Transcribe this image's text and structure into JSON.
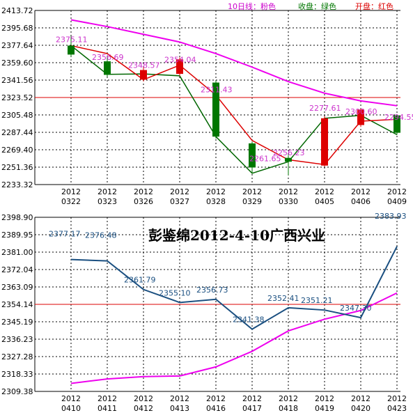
{
  "title": "彭鉴绵2012-4-10广西兴业",
  "legend": [
    {
      "label": "10日线：粉色",
      "color": "#cc00cc"
    },
    {
      "label": "收盘：绿色",
      "color": "#007700"
    },
    {
      "label": "开盘：红色",
      "color": "#dd0000"
    }
  ],
  "colors": {
    "up": "#dd0000",
    "down": "#007700",
    "ma": "#ee00ee",
    "close_line": "#006600",
    "open_line": "#dd0000",
    "annotation": "#cc33cc",
    "bottom_line": "#1a4f80",
    "bottom_annotation": "#1a4f80",
    "ref_line": "#dd0000"
  },
  "chart_data": [
    {
      "type": "candlestick",
      "x": [
        "2012\n0322",
        "2012\n0323",
        "2012\n0326",
        "2012\n0327",
        "2012\n0328",
        "2012\n0329",
        "2012\n0330",
        "2012\n0405",
        "2012\n0406",
        "2012\n0409"
      ],
      "yticks": [
        "2413.72",
        "2395.68",
        "2377.64",
        "2359.60",
        "2341.56",
        "2323.52",
        "2305.48",
        "2287.44",
        "2269.40",
        "2251.36",
        "2233.32"
      ],
      "ylim": [
        2233.32,
        2413.72
      ],
      "grid": true,
      "reference_line": 2323.52,
      "series": [
        {
          "name": "收盘",
          "values": [
            2375.11,
            2356.69,
            2348.57,
            2354.04,
            2311.43,
            2261.65,
            2256.23,
            2277.61,
            2300.6,
            2294.55
          ]
        },
        {
          "name": "开盘",
          "values": [
            2377.3,
            2369.0,
            2342.0,
            2357.0,
            2326.0,
            2279.0,
            2259.0,
            2254.0,
            2299.0,
            2301.0
          ]
        },
        {
          "name": "收盘线",
          "values": [
            2377.3,
            2347.5,
            2348.0,
            2346.0,
            2283.0,
            2245.0,
            2257.0,
            2302.0,
            2305.0,
            2285.0
          ]
        },
        {
          "name": "10日线",
          "values": [
            2404.0,
            2397.0,
            2389.0,
            2381.0,
            2369.0,
            2355.0,
            2340.0,
            2328.0,
            2320.0,
            2315.0
          ]
        }
      ],
      "candles": [
        {
          "open": 2377.3,
          "close": 2368.0,
          "high": 2387.0,
          "low": 2366.0
        },
        {
          "open": 2361.0,
          "close": 2347.0,
          "high": 2367.0,
          "low": 2345.0
        },
        {
          "open": 2342.0,
          "close": 2352.0,
          "high": 2355.0,
          "low": 2340.0
        },
        {
          "open": 2348.0,
          "close": 2363.0,
          "high": 2365.0,
          "low": 2346.0
        },
        {
          "open": 2339.0,
          "close": 2283.0,
          "high": 2341.0,
          "low": 2281.0
        },
        {
          "open": 2276.0,
          "close": 2251.0,
          "high": 2278.0,
          "low": 2245.0
        },
        {
          "open": 2261.0,
          "close": 2257.0,
          "high": 2264.0,
          "low": 2243.0
        },
        {
          "open": 2253.0,
          "close": 2302.0,
          "high": 2304.0,
          "low": 2252.0
        },
        {
          "open": 2295.0,
          "close": 2311.0,
          "high": 2312.0,
          "low": 2293.0
        },
        {
          "open": 2305.0,
          "close": 2287.0,
          "high": 2306.0,
          "low": 2285.0
        }
      ],
      "annotations": [
        "2375.11",
        "2356.69",
        "2348.57",
        "2354.04",
        "2311.43",
        "2261.65",
        "2256.23",
        "2277.61",
        "2300.60",
        "2294.55"
      ]
    },
    {
      "type": "line",
      "x": [
        "2012\n0410",
        "2012\n0411",
        "2012\n0412",
        "2012\n0413",
        "2012\n0416",
        "2012\n0417",
        "2012\n0418",
        "2012\n0419",
        "2012\n0420",
        "2012\n0423"
      ],
      "yticks": [
        "2398.90",
        "2389.95",
        "2381.00",
        "2372.04",
        "2363.09",
        "2354.14",
        "2345.19",
        "2336.23",
        "2327.28",
        "2318.33",
        "2309.38"
      ],
      "ylim": [
        2309.38,
        2398.9
      ],
      "grid": true,
      "reference_line": 2354.14,
      "series": [
        {
          "name": "收盘",
          "values": [
            2377.17,
            2376.48,
            2361.79,
            2355.1,
            2356.73,
            2341.38,
            2352.41,
            2351.21,
            2347.3,
            2383.93
          ]
        },
        {
          "name": "10日线",
          "values": [
            2313.5,
            2315.8,
            2317.0,
            2317.3,
            2322.0,
            2330.0,
            2340.5,
            2346.5,
            2351.0,
            2360.0
          ]
        }
      ],
      "annotations": [
        "2377.17",
        "2376.48",
        "2361.79",
        "2355.10",
        "2356.73",
        "2341.38",
        "2352.41",
        "2351.21",
        "2347.30",
        "2383.93"
      ]
    }
  ]
}
